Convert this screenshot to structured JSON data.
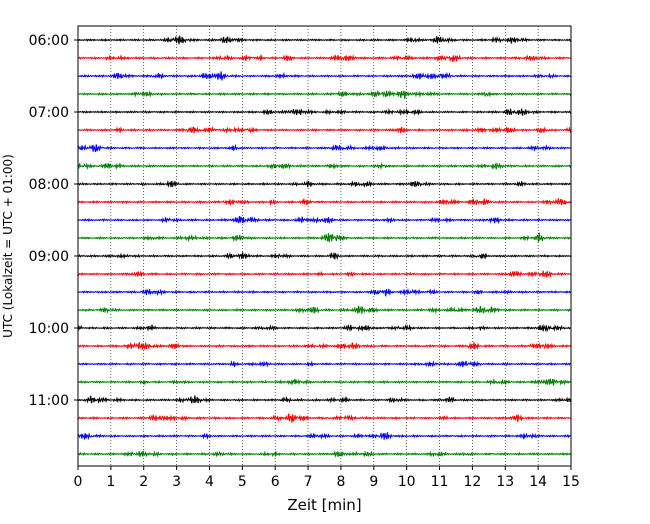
{
  "chart_data": {
    "type": "line",
    "title": "",
    "xlabel": "Zeit  [min]",
    "ylabel": "UTC (Lokalzeit = UTC + 01:00)",
    "xlim": [
      0,
      15
    ],
    "x_ticks": [
      "0",
      "1",
      "2",
      "3",
      "4",
      "5",
      "6",
      "7",
      "8",
      "9",
      "10",
      "11",
      "12",
      "13",
      "14",
      "15"
    ],
    "y_ticks": [
      {
        "label": "06:00",
        "row": 0
      },
      {
        "label": "07:00",
        "row": 4
      },
      {
        "label": "08:00",
        "row": 8
      },
      {
        "label": "09:00",
        "row": 12
      },
      {
        "label": "10:00",
        "row": 16
      },
      {
        "label": "11:00",
        "row": 20
      }
    ],
    "grid": "vertical dotted lines at each minute",
    "trace_interval_min": 15,
    "trace_count": 24,
    "trace_colors": [
      "#000000",
      "#ff0000",
      "#0000ff",
      "#008000"
    ]
  }
}
